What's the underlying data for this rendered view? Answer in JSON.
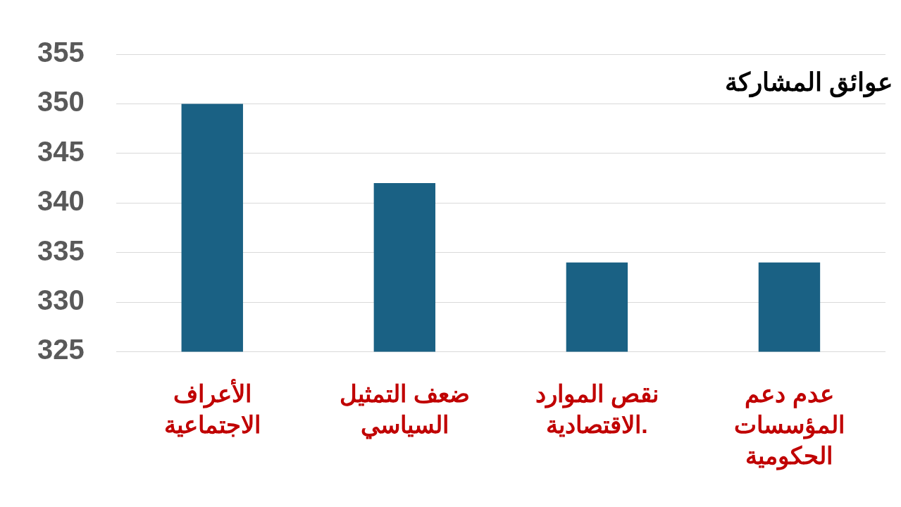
{
  "chart_data": {
    "type": "bar",
    "title": "عوائق المشاركة",
    "categories": [
      "الأعراف الاجتماعية",
      "ضعف التمثيل السياسي",
      "نقص الموارد الاقتصادية.",
      "عدم دعم المؤسسات الحكومية"
    ],
    "values": [
      350,
      342,
      334,
      334
    ],
    "color": "#1a6184",
    "ylim": [
      325,
      355
    ],
    "yticks": [
      325,
      330,
      335,
      340,
      345,
      350,
      355
    ],
    "grid": "y",
    "legend": false
  }
}
